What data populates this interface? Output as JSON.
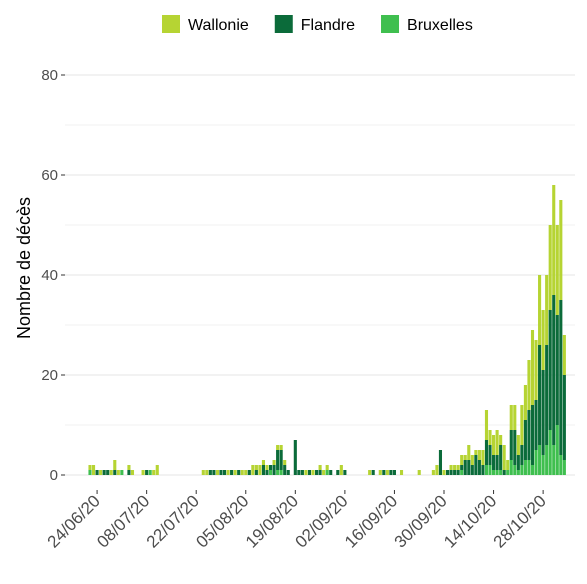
{
  "chart_data": {
    "type": "stacked-bar",
    "y_label": "Nombre de décès",
    "categories": [
      null,
      null,
      "24/06/20",
      null,
      null,
      null,
      null,
      null,
      null,
      null,
      null,
      null,
      null,
      null,
      null,
      null,
      "08/07/20",
      null,
      null,
      null,
      null,
      null,
      null,
      null,
      null,
      null,
      null,
      null,
      null,
      null,
      "22/07/20",
      null,
      null,
      null,
      null,
      null,
      null,
      null,
      null,
      null,
      null,
      null,
      null,
      null,
      "05/08/20",
      null,
      null,
      null,
      null,
      null,
      null,
      null,
      null,
      null,
      null,
      null,
      null,
      null,
      "19/08/20",
      null,
      null,
      null,
      null,
      null,
      null,
      null,
      null,
      null,
      null,
      null,
      null,
      null,
      "02/09/20",
      null,
      null,
      null,
      null,
      null,
      null,
      null,
      null,
      null,
      null,
      null,
      null,
      null,
      "16/09/20",
      null,
      null,
      null,
      null,
      null,
      null,
      null,
      null,
      null,
      null,
      null,
      null,
      null,
      "30/09/20",
      null,
      null,
      null,
      null,
      null,
      null,
      null,
      null,
      null,
      null,
      null,
      null,
      null,
      "14/10/20",
      null,
      null,
      null,
      null,
      null,
      null,
      null,
      null,
      null,
      null,
      null,
      null,
      null,
      "28/10/20",
      null,
      null,
      null,
      null,
      null,
      null
    ],
    "series": [
      {
        "name": "Bruxelles",
        "color": "#3fbf4f",
        "values": [
          1,
          0,
          0,
          0,
          0,
          0,
          0,
          0,
          0,
          1,
          0,
          0,
          0,
          0,
          0,
          0,
          0,
          1,
          0,
          0,
          0,
          0,
          0,
          0,
          0,
          0,
          0,
          0,
          0,
          0,
          0,
          0,
          0,
          0,
          0,
          0,
          0,
          0,
          0,
          0,
          0,
          0,
          0,
          0,
          0,
          0,
          0,
          0,
          0,
          0,
          0,
          1,
          0,
          1,
          1,
          0,
          0,
          0,
          0,
          0,
          0,
          0,
          0,
          0,
          0,
          0,
          0,
          1,
          0,
          0,
          0,
          0,
          0,
          0,
          0,
          0,
          0,
          0,
          0,
          0,
          0,
          0,
          0,
          0,
          0,
          0,
          0,
          0,
          0,
          0,
          0,
          0,
          0,
          0,
          0,
          0,
          0,
          0,
          0,
          0,
          0,
          0,
          0,
          0,
          0,
          1,
          0,
          0,
          0,
          0,
          0,
          0,
          2,
          2,
          1,
          1,
          1,
          0,
          1,
          3,
          2,
          1,
          2,
          3,
          3,
          2,
          5,
          6,
          4,
          6,
          9,
          6,
          10,
          4,
          3
        ]
      },
      {
        "name": "Flandre",
        "color": "#0b6b3a",
        "values": [
          0,
          0,
          1,
          0,
          1,
          1,
          0,
          1,
          0,
          0,
          0,
          1,
          0,
          0,
          0,
          0,
          1,
          0,
          0,
          0,
          0,
          0,
          0,
          0,
          0,
          0,
          0,
          0,
          0,
          0,
          0,
          0,
          0,
          0,
          1,
          1,
          0,
          1,
          1,
          0,
          1,
          0,
          1,
          0,
          0,
          1,
          0,
          1,
          0,
          2,
          1,
          1,
          2,
          4,
          4,
          2,
          1,
          0,
          7,
          1,
          1,
          0,
          1,
          0,
          1,
          1,
          0,
          0,
          1,
          0,
          1,
          0,
          1,
          0,
          0,
          0,
          0,
          0,
          0,
          0,
          1,
          0,
          0,
          1,
          0,
          1,
          1,
          0,
          0,
          0,
          0,
          0,
          0,
          0,
          0,
          0,
          0,
          0,
          0,
          5,
          0,
          1,
          1,
          1,
          1,
          1,
          3,
          3,
          2,
          4,
          3,
          2,
          5,
          4,
          3,
          3,
          5,
          1,
          0,
          6,
          7,
          3,
          4,
          8,
          10,
          12,
          10,
          20,
          17,
          20,
          24,
          30,
          22,
          31,
          17
        ]
      },
      {
        "name": "Wallonie",
        "color": "#b6d433",
        "values": [
          1,
          2,
          0,
          1,
          0,
          0,
          1,
          2,
          1,
          0,
          0,
          1,
          1,
          0,
          0,
          1,
          0,
          0,
          1,
          2,
          0,
          0,
          0,
          0,
          0,
          0,
          0,
          0,
          0,
          0,
          0,
          0,
          1,
          1,
          0,
          0,
          1,
          0,
          0,
          1,
          0,
          1,
          0,
          1,
          1,
          0,
          2,
          1,
          2,
          1,
          1,
          0,
          1,
          1,
          1,
          1,
          0,
          0,
          0,
          0,
          0,
          1,
          0,
          1,
          0,
          1,
          1,
          1,
          0,
          0,
          0,
          2,
          0,
          0,
          0,
          0,
          0,
          0,
          0,
          1,
          0,
          0,
          1,
          0,
          1,
          0,
          0,
          0,
          1,
          0,
          0,
          0,
          0,
          1,
          0,
          0,
          0,
          1,
          2,
          0,
          1,
          0,
          1,
          1,
          1,
          2,
          1,
          3,
          2,
          1,
          2,
          3,
          6,
          3,
          4,
          5,
          2,
          5,
          2,
          5,
          5,
          4,
          8,
          7,
          10,
          15,
          12,
          14,
          12,
          14,
          17,
          22,
          18,
          20,
          8
        ]
      }
    ],
    "legend_order": [
      "Wallonie",
      "Flandre",
      "Bruxelles"
    ],
    "ylim": [
      -3,
      83
    ],
    "yticks": [
      0,
      20,
      40,
      60,
      80
    ],
    "minor_yticks": [
      10,
      30,
      50,
      70
    ],
    "grid": true
  }
}
